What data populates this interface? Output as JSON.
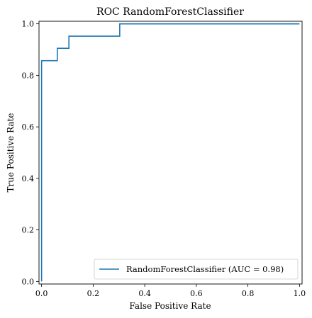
{
  "chart_data": {
    "type": "line",
    "title": "ROC RandomForestClassifier",
    "xlabel": "False Positive Rate",
    "ylabel": "True Positive Rate",
    "xlim": [
      -0.01,
      1.01
    ],
    "ylim": [
      -0.01,
      1.01
    ],
    "xticks": [
      0.0,
      0.2,
      0.4,
      0.6,
      0.8,
      1.0
    ],
    "xtick_labels": [
      "0.0",
      "0.2",
      "0.4",
      "0.6",
      "0.8",
      "1.0"
    ],
    "yticks": [
      0.0,
      0.2,
      0.4,
      0.6,
      0.8,
      1.0
    ],
    "ytick_labels": [
      "0.0",
      "0.2",
      "0.4",
      "0.6",
      "0.8",
      "1.0"
    ],
    "grid": false,
    "legend_position": "bottom-right",
    "series": [
      {
        "name": "RandomForestClassifier (AUC = 0.98)",
        "color": "#1f77b4",
        "x": [
          0.0,
          0.0,
          0.0,
          0.061,
          0.061,
          0.106,
          0.106,
          0.303,
          0.303,
          1.0
        ],
        "y": [
          0.0,
          0.0,
          0.857,
          0.857,
          0.905,
          0.905,
          0.952,
          0.952,
          1.0,
          1.0
        ]
      }
    ]
  }
}
